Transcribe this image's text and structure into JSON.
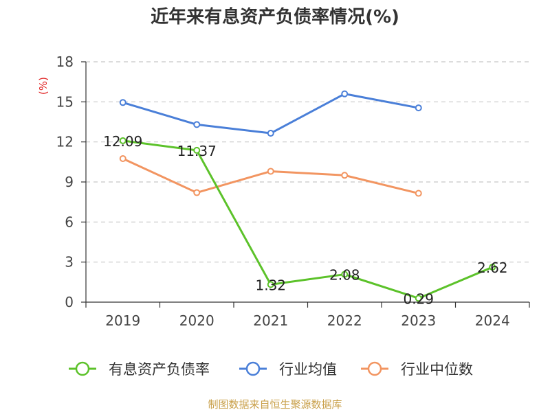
{
  "source": "制图数据来自恒生聚源数据库",
  "chart_data": {
    "type": "line",
    "title": "近年来有息资产负债率情况(%)",
    "ylabel": "(%)",
    "ylabel_color": "#e02020",
    "ylim": [
      0,
      18
    ],
    "yticks": [
      0,
      3,
      6,
      9,
      12,
      15,
      18
    ],
    "categories": [
      "2019",
      "2020",
      "2021",
      "2022",
      "2023",
      "2024"
    ],
    "grid": true,
    "legend_position": "bottom",
    "series": [
      {
        "name": "有息资产负债率",
        "color": "#5cc22a",
        "values": [
          12.09,
          11.37,
          1.32,
          2.08,
          0.29,
          2.62
        ],
        "labels": [
          "12.09",
          "11.37",
          "1.32",
          "2.08",
          "0.29",
          "2.62"
        ]
      },
      {
        "name": "行业均值",
        "color": "#4a7fd8",
        "values": [
          14.95,
          13.3,
          12.65,
          15.6,
          14.55,
          null
        ]
      },
      {
        "name": "行业中位数",
        "color": "#f29561",
        "values": [
          10.75,
          8.2,
          9.8,
          9.5,
          8.15,
          null
        ]
      }
    ]
  }
}
